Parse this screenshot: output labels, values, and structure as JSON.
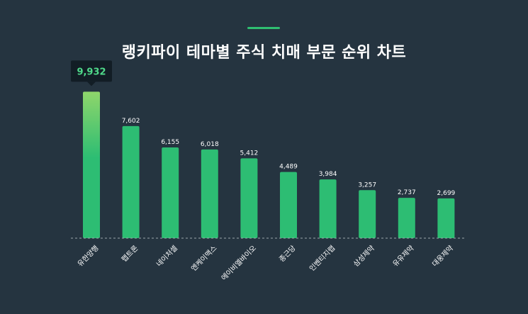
{
  "title": "랭키파이 테마별 주식 치매 부문 순위 차트",
  "colors": {
    "background": "#253440",
    "bar": "#2dbd73",
    "bar_top_highlight": "#8fd66b",
    "accent": "#2fbf71",
    "tooltip_bg": "#121d25",
    "tooltip_text": "#4fd98a",
    "label_text": "#ffffff",
    "baseline": "#9aa6ad"
  },
  "chart_data": {
    "type": "bar",
    "title": "랭키파이 테마별 주식 치매 부문 순위 차트",
    "categories": [
      "유한양행",
      "펩트론",
      "네이처셀",
      "엔케이맥스",
      "에이비엘바이오",
      "종근당",
      "인벤티지랩",
      "삼성제약",
      "유유제약",
      "대웅제약"
    ],
    "values": [
      9932,
      7602,
      6155,
      6018,
      5412,
      4489,
      3984,
      3257,
      2737,
      2699
    ],
    "value_labels": [
      "9,932",
      "7,602",
      "6,155",
      "6,018",
      "5,412",
      "4,489",
      "3,984",
      "3,257",
      "2,737",
      "2,699"
    ],
    "highlight_index": 0,
    "xlabel": "",
    "ylabel": "",
    "ylim": [
      0,
      10000
    ],
    "grid": false,
    "legend": "none"
  }
}
